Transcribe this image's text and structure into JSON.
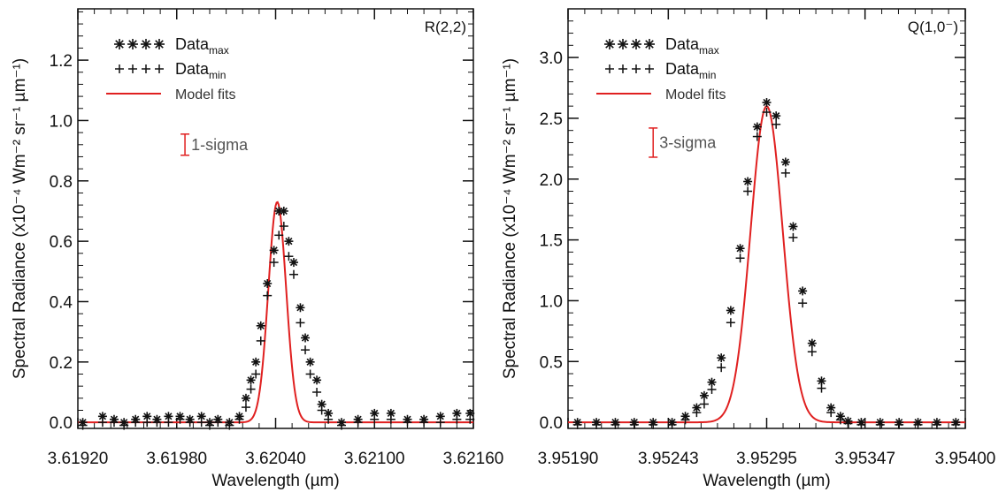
{
  "chart_data": [
    {
      "type": "line",
      "panel_label": "R(2,2)",
      "xlabel": "Wavelength (µm)",
      "ylabel": "Spectral Radiance",
      "ylabel_units": "(x10⁻⁴ Wm⁻² sr⁻¹ µm⁻¹)",
      "xlim": [
        3.6192,
        3.6216
      ],
      "ylim": [
        -0.02,
        1.37
      ],
      "xticks": [
        3.6192,
        3.6198,
        3.6204,
        3.621,
        3.6216
      ],
      "xtick_labels": [
        "3.61920",
        "3.61980",
        "3.62040",
        "3.62100",
        "3.62160"
      ],
      "yticks": [
        0.0,
        0.2,
        0.4,
        0.6,
        0.8,
        1.0,
        1.2
      ],
      "ytick_labels": [
        "0.0",
        "0.2",
        "0.4",
        "0.6",
        "0.8",
        "1.0",
        "1.2"
      ],
      "legend_position": "top-left",
      "legend": [
        {
          "symbols": "✳✳✳✳",
          "label": "Data",
          "sub": "max"
        },
        {
          "symbols": "++++",
          "label": "Data",
          "sub": "min"
        },
        {
          "label": "Model fits",
          "color": "#e02020"
        }
      ],
      "sigma": {
        "label": "1-sigma",
        "x": 3.61985,
        "y_low": 0.885,
        "y_high": 0.955
      },
      "model": {
        "center": 3.62041,
        "amplitude": 0.73,
        "sigma": 5.4e-05,
        "color": "#e02020"
      },
      "series": [
        {
          "name": "Data",
          "sub": "max",
          "marker": "asterisk",
          "x": [
            3.61923,
            3.61935,
            3.61942,
            3.61948,
            3.61955,
            3.61962,
            3.61968,
            3.61975,
            3.61982,
            3.61988,
            3.61995,
            3.62,
            3.62005,
            3.62012,
            3.62018,
            3.62022,
            3.62025,
            3.62028,
            3.62031,
            3.62035,
            3.62039,
            3.62042,
            3.62045,
            3.62048,
            3.62051,
            3.62055,
            3.62058,
            3.62061,
            3.62065,
            3.62068,
            3.62072,
            3.6208,
            3.6209,
            3.621,
            3.6211,
            3.6212,
            3.6213,
            3.6214,
            3.6215,
            3.62158
          ],
          "y": [
            0.0,
            0.02,
            0.01,
            0.0,
            0.01,
            0.02,
            0.01,
            0.02,
            0.02,
            0.01,
            0.02,
            0.0,
            0.01,
            0.0,
            0.02,
            0.08,
            0.14,
            0.2,
            0.32,
            0.46,
            0.57,
            0.7,
            0.7,
            0.6,
            0.53,
            0.38,
            0.28,
            0.2,
            0.14,
            0.06,
            0.03,
            0.0,
            0.01,
            0.03,
            0.03,
            0.01,
            0.01,
            0.02,
            0.03,
            0.03
          ]
        },
        {
          "name": "Data",
          "sub": "min",
          "marker": "plus",
          "x": [
            3.61923,
            3.61935,
            3.61942,
            3.61948,
            3.61955,
            3.61962,
            3.61968,
            3.61975,
            3.61982,
            3.61988,
            3.61995,
            3.62,
            3.62005,
            3.62012,
            3.62018,
            3.62022,
            3.62025,
            3.62028,
            3.62031,
            3.62035,
            3.62039,
            3.62042,
            3.62045,
            3.62048,
            3.62051,
            3.62055,
            3.62058,
            3.62061,
            3.62065,
            3.62068,
            3.62072,
            3.6208,
            3.6209,
            3.621,
            3.6211,
            3.6212,
            3.6213,
            3.6214,
            3.6215,
            3.62158
          ],
          "y": [
            -0.01,
            0.0,
            0.0,
            -0.01,
            0.0,
            0.0,
            0.0,
            0.0,
            0.01,
            0.0,
            0.0,
            -0.01,
            0.0,
            -0.01,
            0.01,
            0.05,
            0.11,
            0.16,
            0.27,
            0.42,
            0.53,
            0.62,
            0.65,
            0.55,
            0.49,
            0.33,
            0.24,
            0.16,
            0.1,
            0.04,
            0.01,
            -0.01,
            0.0,
            0.01,
            0.01,
            0.0,
            0.0,
            0.0,
            0.01,
            0.01
          ]
        }
      ]
    },
    {
      "type": "line",
      "panel_label": "Q(1,0⁻)",
      "xlabel": "Wavelength (µm)",
      "ylabel": "Spectral Radiance",
      "ylabel_units": "(x10⁻⁴ Wm⁻² sr⁻¹ µm⁻¹)",
      "xlim": [
        3.9519,
        3.954
      ],
      "ylim": [
        -0.05,
        3.4
      ],
      "xticks": [
        3.9519,
        3.95243,
        3.95295,
        3.95347,
        3.954
      ],
      "xtick_labels": [
        "3.95190",
        "3.95243",
        "3.95295",
        "3.95347",
        "3.95400"
      ],
      "yticks": [
        0.0,
        0.5,
        1.0,
        1.5,
        2.0,
        2.5,
        3.0
      ],
      "ytick_labels": [
        "0.0",
        "0.5",
        "1.0",
        "1.5",
        "2.0",
        "2.5",
        "3.0"
      ],
      "legend_position": "top-left",
      "legend": [
        {
          "symbols": "✳✳✳✳",
          "label": "Data",
          "sub": "max"
        },
        {
          "symbols": "++++",
          "label": "Data",
          "sub": "min"
        },
        {
          "label": "Model fits",
          "color": "#e02020"
        }
      ],
      "sigma": {
        "label": "3-sigma",
        "x": 3.95235,
        "y_low": 2.18,
        "y_high": 2.42
      },
      "model": {
        "center": 3.95295,
        "amplitude": 2.6,
        "sigma": 8.5e-05,
        "color": "#e02020"
      },
      "series": [
        {
          "name": "Data",
          "sub": "max",
          "marker": "asterisk",
          "x": [
            3.95195,
            3.95205,
            3.95215,
            3.95225,
            3.95235,
            3.95245,
            3.95252,
            3.95258,
            3.95262,
            3.95266,
            3.95271,
            3.95276,
            3.95281,
            3.95285,
            3.9529,
            3.95295,
            3.953,
            3.95305,
            3.95309,
            3.95314,
            3.95319,
            3.95324,
            3.95329,
            3.95334,
            3.95338,
            3.95345,
            3.95355,
            3.95365,
            3.95375,
            3.95385,
            3.95395
          ],
          "y": [
            0.0,
            0.0,
            0.0,
            0.0,
            0.0,
            0.0,
            0.05,
            0.12,
            0.22,
            0.33,
            0.53,
            0.92,
            1.43,
            1.98,
            2.43,
            2.63,
            2.52,
            2.14,
            1.61,
            1.08,
            0.65,
            0.34,
            0.12,
            0.05,
            0.01,
            0.0,
            0.0,
            0.0,
            0.0,
            0.0,
            0.0
          ]
        },
        {
          "name": "Data",
          "sub": "min",
          "marker": "plus",
          "x": [
            3.95195,
            3.95205,
            3.95215,
            3.95225,
            3.95235,
            3.95245,
            3.95252,
            3.95258,
            3.95262,
            3.95266,
            3.95271,
            3.95276,
            3.95281,
            3.95285,
            3.9529,
            3.95295,
            3.953,
            3.95305,
            3.95309,
            3.95314,
            3.95319,
            3.95324,
            3.95329,
            3.95334,
            3.95338,
            3.95345,
            3.95355,
            3.95365,
            3.95375,
            3.95385,
            3.95395
          ],
          "y": [
            -0.02,
            -0.02,
            -0.02,
            -0.02,
            -0.02,
            -0.02,
            0.02,
            0.08,
            0.15,
            0.27,
            0.45,
            0.82,
            1.35,
            1.9,
            2.35,
            2.55,
            2.45,
            2.05,
            1.52,
            0.98,
            0.58,
            0.28,
            0.08,
            0.02,
            -0.01,
            -0.02,
            -0.02,
            -0.02,
            -0.02,
            -0.02,
            -0.02
          ]
        }
      ]
    }
  ]
}
